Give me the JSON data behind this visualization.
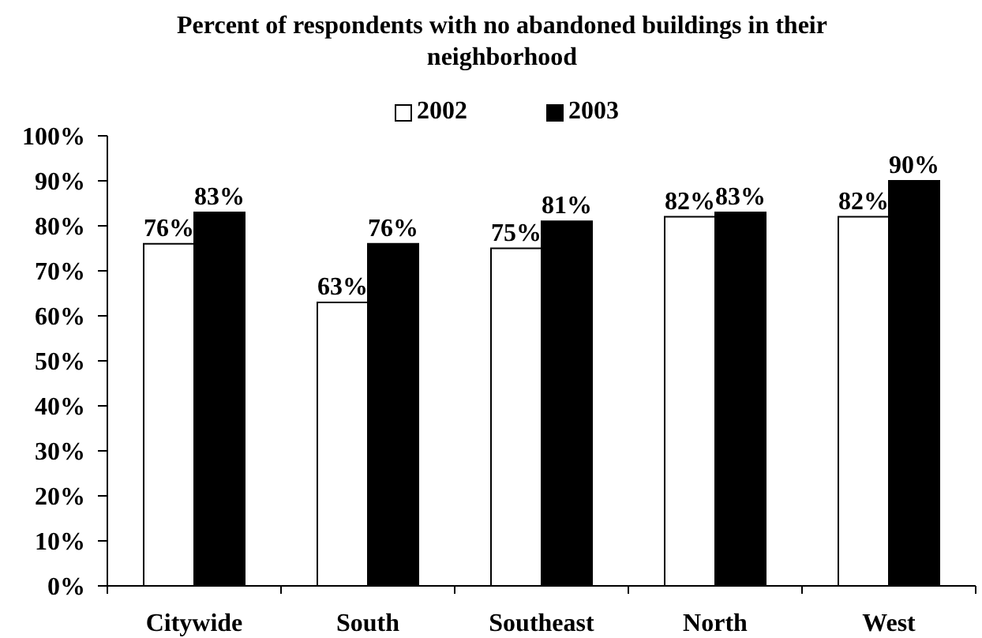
{
  "chart_data": {
    "type": "bar",
    "title": "Percent of respondents with no abandoned buildings in their neighborhood",
    "categories": [
      "Citywide",
      "South",
      "Southeast",
      "North",
      "West"
    ],
    "series": [
      {
        "name": "2002",
        "color": "#ffffff",
        "values": [
          76,
          63,
          75,
          82,
          82
        ],
        "value_labels": [
          "76%",
          "63%",
          "75%",
          "82%",
          "82%"
        ]
      },
      {
        "name": "2003",
        "color": "#000000",
        "values": [
          83,
          76,
          81,
          83,
          90
        ],
        "value_labels": [
          "83%",
          "76%",
          "81%",
          "83%",
          "90%"
        ]
      }
    ],
    "ylim": [
      0,
      100
    ],
    "yticks": [
      {
        "value": 0,
        "label": "0%"
      },
      {
        "value": 10,
        "label": "10%"
      },
      {
        "value": 20,
        "label": "20%"
      },
      {
        "value": 30,
        "label": "30%"
      },
      {
        "value": 40,
        "label": "40%"
      },
      {
        "value": 50,
        "label": "50%"
      },
      {
        "value": 60,
        "label": "60%"
      },
      {
        "value": 70,
        "label": "70%"
      },
      {
        "value": 80,
        "label": "80%"
      },
      {
        "value": 90,
        "label": "90%"
      },
      {
        "value": 100,
        "label": "100%"
      }
    ],
    "legend": "top"
  }
}
